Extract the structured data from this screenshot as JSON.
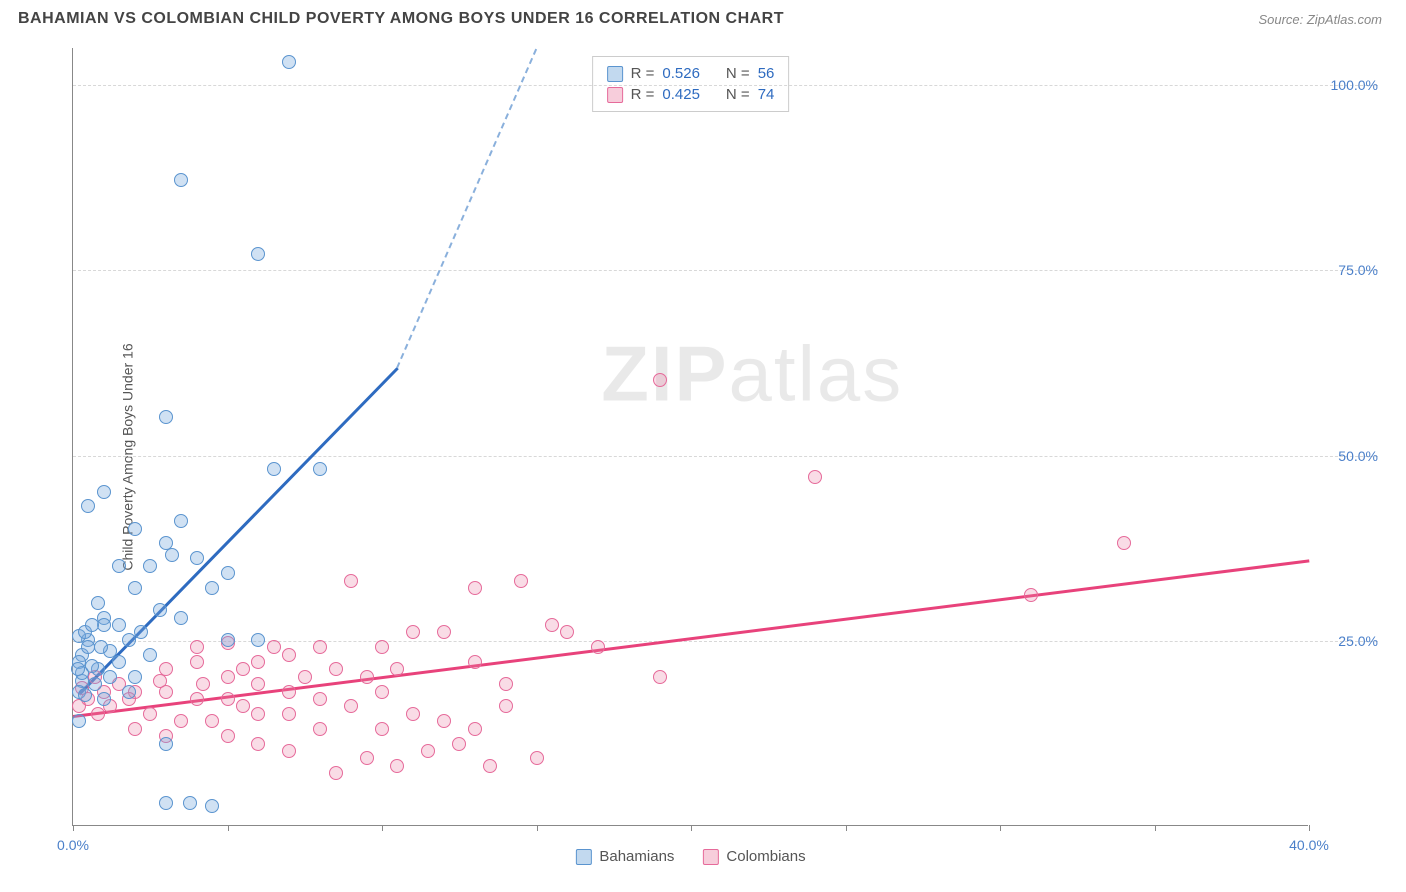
{
  "header": {
    "title": "BAHAMIAN VS COLOMBIAN CHILD POVERTY AMONG BOYS UNDER 16 CORRELATION CHART",
    "source": "Source: ZipAtlas.com"
  },
  "chart": {
    "type": "scatter",
    "ylabel": "Child Poverty Among Boys Under 16",
    "xlim": [
      0,
      40
    ],
    "ylim": [
      0,
      105
    ],
    "yticks": [
      25,
      50,
      75,
      100
    ],
    "ytick_labels": [
      "25.0%",
      "50.0%",
      "75.0%",
      "100.0%"
    ],
    "xticks": [
      0,
      5,
      10,
      15,
      20,
      25,
      30,
      35,
      40
    ],
    "xtick_labels_shown": {
      "0": "0.0%",
      "40": "40.0%"
    },
    "background_color": "#ffffff",
    "grid_color": "#d8d8d8",
    "grid_style": "dashed",
    "series": {
      "bahamians": {
        "label": "Bahamians",
        "marker_fill": "rgba(120,170,220,0.35)",
        "marker_stroke": "#5a94cf",
        "trend_color": "#2e6bc0",
        "trend_p1": [
          0.2,
          18
        ],
        "trend_solid_p2": [
          10.5,
          62
        ],
        "trend_dash_p2": [
          15,
          105
        ],
        "R": 0.526,
        "N": 56,
        "points": [
          [
            7,
            103
          ],
          [
            3.5,
            87
          ],
          [
            6,
            77
          ],
          [
            3,
            55
          ],
          [
            8,
            48
          ],
          [
            6.5,
            48
          ],
          [
            1,
            45
          ],
          [
            0.5,
            43
          ],
          [
            2,
            40
          ],
          [
            3.5,
            41
          ],
          [
            3,
            38
          ],
          [
            3.2,
            36.5
          ],
          [
            1.5,
            35
          ],
          [
            2.5,
            35
          ],
          [
            4,
            36
          ],
          [
            5,
            34
          ],
          [
            2,
            32
          ],
          [
            4.5,
            32
          ],
          [
            0.8,
            30
          ],
          [
            1,
            28
          ],
          [
            2.8,
            29
          ],
          [
            3.5,
            28
          ],
          [
            5,
            25
          ],
          [
            6,
            25
          ],
          [
            1,
            27
          ],
          [
            0.5,
            25
          ],
          [
            1.8,
            25
          ],
          [
            0.3,
            23
          ],
          [
            0.8,
            21
          ],
          [
            1.5,
            22
          ],
          [
            2.5,
            23
          ],
          [
            0.3,
            19.5
          ],
          [
            0.7,
            19
          ],
          [
            1.2,
            20
          ],
          [
            2,
            20
          ],
          [
            0.2,
            18
          ],
          [
            0.4,
            17.5
          ],
          [
            1,
            17
          ],
          [
            1.8,
            18
          ],
          [
            0.2,
            22
          ],
          [
            0.6,
            21.5
          ],
          [
            0.3,
            20.5
          ],
          [
            0.5,
            24
          ],
          [
            1.2,
            23.5
          ],
          [
            0.2,
            25.5
          ],
          [
            0.15,
            21
          ],
          [
            0.4,
            26
          ],
          [
            0.9,
            24
          ],
          [
            0.2,
            14
          ],
          [
            3,
            11
          ],
          [
            3,
            3
          ],
          [
            3.8,
            3
          ],
          [
            4.5,
            2.5
          ],
          [
            0.6,
            27
          ],
          [
            1.5,
            27
          ],
          [
            2.2,
            26
          ]
        ]
      },
      "colombians": {
        "label": "Colombians",
        "marker_fill": "rgba(235,130,165,0.28)",
        "marker_stroke": "#e66a9a",
        "trend_color": "#e8427b",
        "trend_p1": [
          0,
          15
        ],
        "trend_p2": [
          40,
          36
        ],
        "R": 0.425,
        "N": 74,
        "points": [
          [
            19,
            60
          ],
          [
            24,
            47
          ],
          [
            34,
            38
          ],
          [
            31,
            31
          ],
          [
            9,
            33
          ],
          [
            13,
            32
          ],
          [
            14.5,
            33
          ],
          [
            11,
            26
          ],
          [
            12,
            26
          ],
          [
            15.5,
            27
          ],
          [
            16,
            26
          ],
          [
            17,
            24
          ],
          [
            19,
            20
          ],
          [
            13,
            22
          ],
          [
            14,
            19
          ],
          [
            8,
            24
          ],
          [
            7,
            23
          ],
          [
            6,
            22
          ],
          [
            4,
            22
          ],
          [
            3,
            21
          ],
          [
            5,
            20
          ],
          [
            6,
            19
          ],
          [
            2,
            18
          ],
          [
            3,
            18
          ],
          [
            1.5,
            19
          ],
          [
            0.7,
            20
          ],
          [
            1,
            18
          ],
          [
            0.5,
            17
          ],
          [
            0.2,
            16
          ],
          [
            4,
            17
          ],
          [
            5,
            17
          ],
          [
            7,
            18
          ],
          [
            8,
            17
          ],
          [
            9,
            16
          ],
          [
            10,
            18
          ],
          [
            6,
            15
          ],
          [
            7,
            15
          ],
          [
            8,
            13
          ],
          [
            10,
            13
          ],
          [
            11,
            15
          ],
          [
            12,
            14
          ],
          [
            13,
            13
          ],
          [
            11.5,
            10
          ],
          [
            12.5,
            11
          ],
          [
            9.5,
            9
          ],
          [
            10.5,
            8
          ],
          [
            13.5,
            8
          ],
          [
            15,
            9
          ],
          [
            8.5,
            7
          ],
          [
            7,
            10
          ],
          [
            6,
            11
          ],
          [
            5,
            12
          ],
          [
            4.5,
            14
          ],
          [
            3.5,
            14
          ],
          [
            2.5,
            15
          ],
          [
            2,
            13
          ],
          [
            3,
            12
          ],
          [
            0.3,
            18.5
          ],
          [
            1.2,
            16
          ],
          [
            1.8,
            17
          ],
          [
            2.8,
            19.5
          ],
          [
            4.2,
            19
          ],
          [
            5.5,
            21
          ],
          [
            7.5,
            20
          ],
          [
            8.5,
            21
          ],
          [
            9.5,
            20
          ],
          [
            10.5,
            21
          ],
          [
            5.5,
            16
          ],
          [
            0.8,
            15
          ],
          [
            6.5,
            24
          ],
          [
            5,
            24.5
          ],
          [
            4,
            24
          ],
          [
            10,
            24
          ],
          [
            14,
            16
          ]
        ]
      }
    },
    "legend_top": {
      "rows": [
        {
          "swatch": "b",
          "r_label": "R =",
          "r_val": "0.526",
          "n_label": "N =",
          "n_val": "56"
        },
        {
          "swatch": "p",
          "r_label": "R =",
          "r_val": "0.425",
          "n_label": "N =",
          "n_val": "74"
        }
      ]
    },
    "legend_bottom": [
      {
        "swatch": "b",
        "label": "Bahamians"
      },
      {
        "swatch": "p",
        "label": "Colombians"
      }
    ],
    "watermark": {
      "bold": "ZIP",
      "rest": "atlas"
    }
  }
}
